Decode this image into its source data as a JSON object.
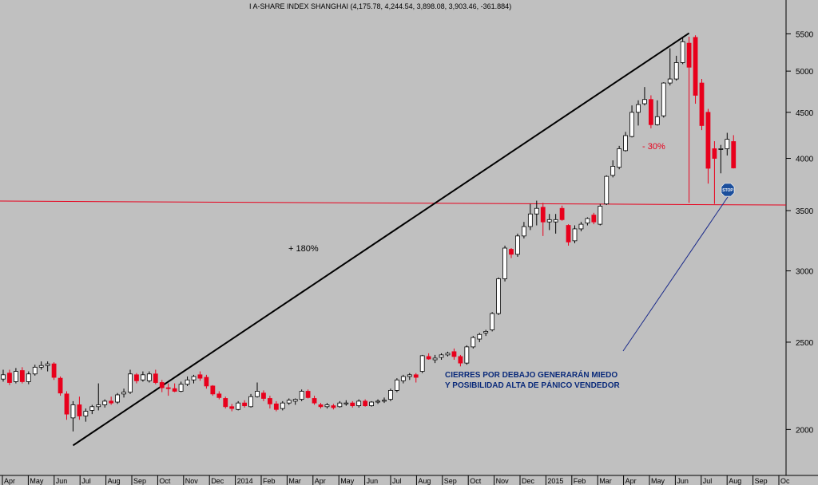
{
  "chart_data": {
    "type": "candlestick",
    "title": "I A-SHARE INDEX SHANGHAI (4,175.78, 4,244.54, 3,898.08, 3,903.46, -361.884)",
    "y_scale": "log",
    "ylim": [
      1800,
      5900
    ],
    "y_ticks": [
      2000,
      2500,
      3000,
      3500,
      4000,
      4500,
      5000,
      5500
    ],
    "y_tick_labels": [
      "2000",
      "2500",
      "3000",
      "3500",
      "4000",
      "4500",
      "5000",
      "5500"
    ],
    "x_ticks": [
      "Apr",
      "May",
      "Jun",
      "Jul",
      "Aug",
      "Sep",
      "Oct",
      "Nov",
      "Dec",
      "2014",
      "Feb",
      "Mar",
      "Apr",
      "May",
      "Jun",
      "Jul",
      "Aug",
      "Sep",
      "Oct",
      "Nov",
      "Dec",
      "2015",
      "Feb",
      "Mar",
      "Apr",
      "May",
      "Jun",
      "Jul",
      "Aug",
      "Sep",
      "Oc"
    ],
    "candles": [
      {
        "o": 2275,
        "h": 2330,
        "l": 2260,
        "c": 2300
      },
      {
        "o": 2310,
        "h": 2330,
        "l": 2240,
        "c": 2255
      },
      {
        "o": 2260,
        "h": 2340,
        "l": 2250,
        "c": 2320
      },
      {
        "o": 2325,
        "h": 2345,
        "l": 2250,
        "c": 2260
      },
      {
        "o": 2260,
        "h": 2320,
        "l": 2245,
        "c": 2305
      },
      {
        "o": 2305,
        "h": 2360,
        "l": 2295,
        "c": 2345
      },
      {
        "o": 2345,
        "h": 2380,
        "l": 2330,
        "c": 2355
      },
      {
        "o": 2355,
        "h": 2380,
        "l": 2320,
        "c": 2365
      },
      {
        "o": 2365,
        "h": 2375,
        "l": 2270,
        "c": 2285
      },
      {
        "o": 2280,
        "h": 2290,
        "l": 2180,
        "c": 2195
      },
      {
        "o": 2190,
        "h": 2205,
        "l": 2050,
        "c": 2080
      },
      {
        "o": 2060,
        "h": 2150,
        "l": 1990,
        "c": 2130
      },
      {
        "o": 2130,
        "h": 2175,
        "l": 2050,
        "c": 2070
      },
      {
        "o": 2070,
        "h": 2110,
        "l": 2040,
        "c": 2095
      },
      {
        "o": 2100,
        "h": 2130,
        "l": 2080,
        "c": 2120
      },
      {
        "o": 2120,
        "h": 2250,
        "l": 2100,
        "c": 2130
      },
      {
        "o": 2130,
        "h": 2160,
        "l": 2115,
        "c": 2150
      },
      {
        "o": 2150,
        "h": 2175,
        "l": 2130,
        "c": 2140
      },
      {
        "o": 2145,
        "h": 2195,
        "l": 2135,
        "c": 2185
      },
      {
        "o": 2190,
        "h": 2220,
        "l": 2170,
        "c": 2200
      },
      {
        "o": 2200,
        "h": 2330,
        "l": 2190,
        "c": 2305
      },
      {
        "o": 2300,
        "h": 2310,
        "l": 2250,
        "c": 2265
      },
      {
        "o": 2270,
        "h": 2320,
        "l": 2260,
        "c": 2300
      },
      {
        "o": 2265,
        "h": 2320,
        "l": 2255,
        "c": 2305
      },
      {
        "o": 2305,
        "h": 2330,
        "l": 2245,
        "c": 2255
      },
      {
        "o": 2255,
        "h": 2270,
        "l": 2200,
        "c": 2225
      },
      {
        "o": 2225,
        "h": 2250,
        "l": 2180,
        "c": 2220
      },
      {
        "o": 2220,
        "h": 2250,
        "l": 2200,
        "c": 2205
      },
      {
        "o": 2205,
        "h": 2260,
        "l": 2200,
        "c": 2245
      },
      {
        "o": 2245,
        "h": 2290,
        "l": 2235,
        "c": 2270
      },
      {
        "o": 2270,
        "h": 2300,
        "l": 2250,
        "c": 2290
      },
      {
        "o": 2300,
        "h": 2320,
        "l": 2265,
        "c": 2280
      },
      {
        "o": 2285,
        "h": 2300,
        "l": 2220,
        "c": 2235
      },
      {
        "o": 2235,
        "h": 2240,
        "l": 2180,
        "c": 2190
      },
      {
        "o": 2190,
        "h": 2205,
        "l": 2160,
        "c": 2170
      },
      {
        "o": 2165,
        "h": 2175,
        "l": 2110,
        "c": 2120
      },
      {
        "o": 2120,
        "h": 2135,
        "l": 2095,
        "c": 2110
      },
      {
        "o": 2105,
        "h": 2150,
        "l": 2100,
        "c": 2140
      },
      {
        "o": 2140,
        "h": 2155,
        "l": 2115,
        "c": 2125
      },
      {
        "o": 2120,
        "h": 2190,
        "l": 2115,
        "c": 2175
      },
      {
        "o": 2175,
        "h": 2255,
        "l": 2170,
        "c": 2205
      },
      {
        "o": 2195,
        "h": 2210,
        "l": 2150,
        "c": 2165
      },
      {
        "o": 2165,
        "h": 2180,
        "l": 2110,
        "c": 2135
      },
      {
        "o": 2135,
        "h": 2150,
        "l": 2095,
        "c": 2105
      },
      {
        "o": 2110,
        "h": 2150,
        "l": 2100,
        "c": 2140
      },
      {
        "o": 2140,
        "h": 2165,
        "l": 2130,
        "c": 2155
      },
      {
        "o": 2150,
        "h": 2165,
        "l": 2130,
        "c": 2160
      },
      {
        "o": 2160,
        "h": 2215,
        "l": 2150,
        "c": 2205
      },
      {
        "o": 2205,
        "h": 2215,
        "l": 2165,
        "c": 2170
      },
      {
        "o": 2165,
        "h": 2180,
        "l": 2130,
        "c": 2140
      },
      {
        "o": 2130,
        "h": 2140,
        "l": 2110,
        "c": 2120
      },
      {
        "o": 2120,
        "h": 2140,
        "l": 2110,
        "c": 2130
      },
      {
        "o": 2125,
        "h": 2135,
        "l": 2105,
        "c": 2115
      },
      {
        "o": 2120,
        "h": 2150,
        "l": 2115,
        "c": 2140
      },
      {
        "o": 2135,
        "h": 2155,
        "l": 2125,
        "c": 2140
      },
      {
        "o": 2140,
        "h": 2150,
        "l": 2115,
        "c": 2125
      },
      {
        "o": 2125,
        "h": 2160,
        "l": 2115,
        "c": 2150
      },
      {
        "o": 2150,
        "h": 2160,
        "l": 2120,
        "c": 2125
      },
      {
        "o": 2125,
        "h": 2150,
        "l": 2120,
        "c": 2145
      },
      {
        "o": 2145,
        "h": 2160,
        "l": 2135,
        "c": 2150
      },
      {
        "o": 2150,
        "h": 2170,
        "l": 2140,
        "c": 2155
      },
      {
        "o": 2160,
        "h": 2220,
        "l": 2150,
        "c": 2210
      },
      {
        "o": 2210,
        "h": 2280,
        "l": 2200,
        "c": 2270
      },
      {
        "o": 2265,
        "h": 2300,
        "l": 2250,
        "c": 2290
      },
      {
        "o": 2290,
        "h": 2310,
        "l": 2270,
        "c": 2300
      },
      {
        "o": 2300,
        "h": 2310,
        "l": 2255,
        "c": 2285
      },
      {
        "o": 2320,
        "h": 2420,
        "l": 2310,
        "c": 2415
      },
      {
        "o": 2410,
        "h": 2430,
        "l": 2390,
        "c": 2395
      },
      {
        "o": 2390,
        "h": 2420,
        "l": 2370,
        "c": 2400
      },
      {
        "o": 2405,
        "h": 2430,
        "l": 2390,
        "c": 2420
      },
      {
        "o": 2420,
        "h": 2440,
        "l": 2410,
        "c": 2430
      },
      {
        "o": 2440,
        "h": 2460,
        "l": 2390,
        "c": 2410
      },
      {
        "o": 2410,
        "h": 2420,
        "l": 2350,
        "c": 2370
      },
      {
        "o": 2370,
        "h": 2480,
        "l": 2360,
        "c": 2470
      },
      {
        "o": 2470,
        "h": 2540,
        "l": 2460,
        "c": 2530
      },
      {
        "o": 2520,
        "h": 2560,
        "l": 2500,
        "c": 2550
      },
      {
        "o": 2560,
        "h": 2580,
        "l": 2540,
        "c": 2570
      },
      {
        "o": 2580,
        "h": 2700,
        "l": 2570,
        "c": 2690
      },
      {
        "o": 2690,
        "h": 2950,
        "l": 2680,
        "c": 2940
      },
      {
        "o": 2940,
        "h": 3200,
        "l": 2920,
        "c": 3180
      },
      {
        "o": 3170,
        "h": 3180,
        "l": 3100,
        "c": 3130
      },
      {
        "o": 3130,
        "h": 3300,
        "l": 3110,
        "c": 3280
      },
      {
        "o": 3280,
        "h": 3400,
        "l": 3260,
        "c": 3360
      },
      {
        "o": 3360,
        "h": 3560,
        "l": 3330,
        "c": 3470
      },
      {
        "o": 3470,
        "h": 3590,
        "l": 3370,
        "c": 3520
      },
      {
        "o": 3530,
        "h": 3570,
        "l": 3280,
        "c": 3400
      },
      {
        "o": 3400,
        "h": 3470,
        "l": 3330,
        "c": 3420
      },
      {
        "o": 3400,
        "h": 3470,
        "l": 3300,
        "c": 3420
      },
      {
        "o": 3520,
        "h": 3545,
        "l": 3410,
        "c": 3420
      },
      {
        "o": 3370,
        "h": 3380,
        "l": 3200,
        "c": 3230
      },
      {
        "o": 3240,
        "h": 3370,
        "l": 3220,
        "c": 3340
      },
      {
        "o": 3340,
        "h": 3400,
        "l": 3320,
        "c": 3380
      },
      {
        "o": 3390,
        "h": 3440,
        "l": 3370,
        "c": 3430
      },
      {
        "o": 3460,
        "h": 3480,
        "l": 3380,
        "c": 3400
      },
      {
        "o": 3380,
        "h": 3560,
        "l": 3370,
        "c": 3540
      },
      {
        "o": 3560,
        "h": 3830,
        "l": 3550,
        "c": 3820
      },
      {
        "o": 3830,
        "h": 3980,
        "l": 3810,
        "c": 3920
      },
      {
        "o": 3910,
        "h": 4130,
        "l": 3890,
        "c": 4100
      },
      {
        "o": 4080,
        "h": 4280,
        "l": 4070,
        "c": 4240
      },
      {
        "o": 4230,
        "h": 4580,
        "l": 4220,
        "c": 4500
      },
      {
        "o": 4500,
        "h": 4640,
        "l": 4350,
        "c": 4590
      },
      {
        "o": 4600,
        "h": 4800,
        "l": 4580,
        "c": 4650
      },
      {
        "o": 4650,
        "h": 4700,
        "l": 4320,
        "c": 4360
      },
      {
        "o": 4360,
        "h": 4640,
        "l": 4350,
        "c": 4450
      },
      {
        "o": 4460,
        "h": 4860,
        "l": 4440,
        "c": 4850
      },
      {
        "o": 4850,
        "h": 5300,
        "l": 4820,
        "c": 4900
      },
      {
        "o": 4900,
        "h": 5200,
        "l": 4880,
        "c": 5110
      },
      {
        "o": 5110,
        "h": 5450,
        "l": 5090,
        "c": 5390
      },
      {
        "o": 5370,
        "h": 5460,
        "l": 3570,
        "c": 5050
      },
      {
        "o": 5450,
        "h": 5480,
        "l": 4600,
        "c": 4700
      },
      {
        "o": 4850,
        "h": 4900,
        "l": 4300,
        "c": 4350
      },
      {
        "o": 4500,
        "h": 4540,
        "l": 3750,
        "c": 3900
      },
      {
        "o": 4100,
        "h": 4180,
        "l": 3560,
        "c": 4000
      },
      {
        "o": 4100,
        "h": 4140,
        "l": 3850,
        "c": 4100
      },
      {
        "o": 4100,
        "h": 4270,
        "l": 4030,
        "c": 4200
      },
      {
        "o": 4175.78,
        "h": 4244.54,
        "l": 3898.08,
        "c": 3903.46
      }
    ],
    "horizontal_line": 3550,
    "trendline": {
      "from": {
        "candle": 11,
        "price": 1920
      },
      "to": {
        "candle": 108,
        "price": 5510
      }
    },
    "annotations": {
      "rise": "+ 180%",
      "drop": "- 30%",
      "note_line1": "CIERRES POR DEBAJO GENERARÁN MIEDO",
      "note_line2": "Y POSIBILIDAD ALTA DE PÁNICO VENDEDOR",
      "stop_sign": "STOP"
    },
    "colors": {
      "background": "#c0c0c0",
      "up_body": "#ffffff",
      "down_body": "#e8001c",
      "support_line": "#e8001c",
      "trendline": "#000000",
      "note_text": "#0a2a7a",
      "arrow": "#1a2a8a",
      "stop_sign": "#1c4f9c"
    }
  }
}
